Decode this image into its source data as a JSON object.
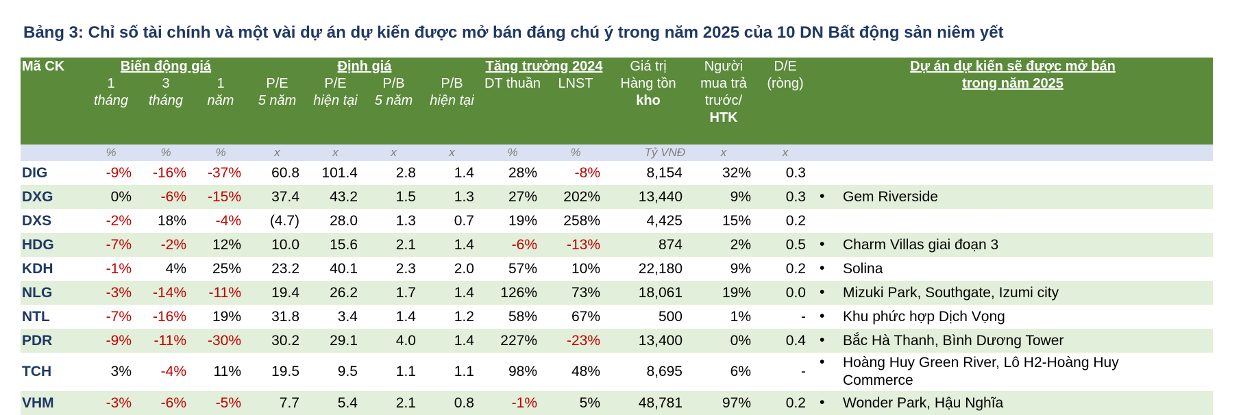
{
  "title": "Bảng 3: Chỉ số tài chính và một vài dự án dự kiến được mở bán đáng chú ý trong năm 2025 của 10 DN Bất động sản niêm yết",
  "header": {
    "ticker": "Mã CK",
    "group_price": "Biến động giá",
    "group_valuation": "Định giá",
    "group_growth": "Tăng trưởng 2024",
    "inventory_line1": "Giá trị",
    "inventory_line2": "Hàng tồn",
    "inventory_line3": "kho",
    "buyer_line1": "Người",
    "buyer_line2": "mua trả",
    "buyer_line3": "trước/",
    "buyer_line4": "HTK",
    "de_line1": "D/E",
    "de_line2": "(ròng)",
    "projects_line1": "Dự án dự kiến sẽ được mở bán",
    "projects_line2": "trong năm 2025",
    "m1_top": "1",
    "m1_bottom": "tháng",
    "m3_top": "3",
    "m3_bottom": "tháng",
    "y1_top": "1",
    "y1_bottom": "năm",
    "pe5_top": "P/E",
    "pe5_bottom": "5 năm",
    "pe_now_top": "P/E",
    "pe_now_bottom": "hiện tại",
    "pb5_top": "P/B",
    "pb5_bottom": "5 năm",
    "pb_now_top": "P/B",
    "pb_now_bottom": "hiện tại",
    "revenue": "DT thuần",
    "profit": "LNST"
  },
  "units": [
    "%",
    "%",
    "%",
    "x",
    "x",
    "x",
    "x",
    "%",
    "%",
    "Tỷ VNĐ",
    "x",
    "x"
  ],
  "bullet": "•",
  "rows": [
    {
      "code": "DIG",
      "m1": "-9%",
      "m3": "-16%",
      "y1": "-37%",
      "pe5": "60.8",
      "pe": "101.4",
      "pb5": "2.8",
      "pb": "1.4",
      "rev": "28%",
      "np": "-8%",
      "inv": "8,154",
      "buyer": "32%",
      "de": "0.3",
      "project": ""
    },
    {
      "code": "DXG",
      "m1": "0%",
      "m3": "-6%",
      "y1": "-15%",
      "pe5": "37.4",
      "pe": "43.2",
      "pb5": "1.5",
      "pb": "1.3",
      "rev": "27%",
      "np": "202%",
      "inv": "13,440",
      "buyer": "9%",
      "de": "0.3",
      "project": "Gem Riverside"
    },
    {
      "code": "DXS",
      "m1": "-2%",
      "m3": "18%",
      "y1": "-4%",
      "pe5": "(4.7)",
      "pe": "28.0",
      "pb5": "1.3",
      "pb": "0.7",
      "rev": "19%",
      "np": "258%",
      "inv": "4,425",
      "buyer": "15%",
      "de": "0.2",
      "project": ""
    },
    {
      "code": "HDG",
      "m1": "-7%",
      "m3": "-2%",
      "y1": "12%",
      "pe5": "10.0",
      "pe": "15.6",
      "pb5": "2.1",
      "pb": "1.4",
      "rev": "-6%",
      "np": "-13%",
      "inv": "874",
      "buyer": "2%",
      "de": "0.5",
      "project": "Charm Villas giai đoạn 3"
    },
    {
      "code": "KDH",
      "m1": "-1%",
      "m3": "4%",
      "y1": "25%",
      "pe5": "23.2",
      "pe": "40.1",
      "pb5": "2.3",
      "pb": "2.0",
      "rev": "57%",
      "np": "10%",
      "inv": "22,180",
      "buyer": "9%",
      "de": "0.2",
      "project": "Solina"
    },
    {
      "code": "NLG",
      "m1": "-3%",
      "m3": "-14%",
      "y1": "-11%",
      "pe5": "19.4",
      "pe": "26.2",
      "pb5": "1.7",
      "pb": "1.4",
      "rev": "126%",
      "np": "73%",
      "inv": "18,061",
      "buyer": "19%",
      "de": "0.0",
      "project": "Mizuki Park, Southgate, Izumi city"
    },
    {
      "code": "NTL",
      "m1": "-7%",
      "m3": "-16%",
      "y1": "19%",
      "pe5": "31.8",
      "pe": "3.4",
      "pb5": "1.4",
      "pb": "1.2",
      "rev": "58%",
      "np": "67%",
      "inv": "500",
      "buyer": "1%",
      "de": "-",
      "project": "Khu phức hợp Dịch Vọng"
    },
    {
      "code": "PDR",
      "m1": "-9%",
      "m3": "-11%",
      "y1": "-30%",
      "pe5": "30.2",
      "pe": "29.1",
      "pb5": "4.0",
      "pb": "1.4",
      "rev": "227%",
      "np": "-23%",
      "inv": "13,400",
      "buyer": "0%",
      "de": "0.4",
      "project": "Bắc Hà Thanh, Bình Dương Tower"
    },
    {
      "code": "TCH",
      "m1": "3%",
      "m3": "-4%",
      "y1": "11%",
      "pe5": "19.5",
      "pe": "9.5",
      "pb5": "1.1",
      "pb": "1.1",
      "rev": "98%",
      "np": "48%",
      "inv": "8,695",
      "buyer": "6%",
      "de": "-",
      "project": "Hoàng Huy Green River, Lô H2-Hoàng Huy Commerce"
    },
    {
      "code": "VHM",
      "m1": "-3%",
      "m3": "-6%",
      "y1": "-5%",
      "pe5": "7.7",
      "pe": "5.4",
      "pb5": "2.1",
      "pb": "0.8",
      "rev": "-1%",
      "np": "5%",
      "inv": "48,781",
      "buyer": "97%",
      "de": "0.2",
      "project": "Wonder Park, Hậu Nghĩa"
    }
  ],
  "colors": {
    "header_bg": "#5b8a3a",
    "units_bg": "#d9e1f2",
    "alt_row_bg": "#e2efda",
    "negative": "#c00000",
    "title": "#1f3864"
  }
}
